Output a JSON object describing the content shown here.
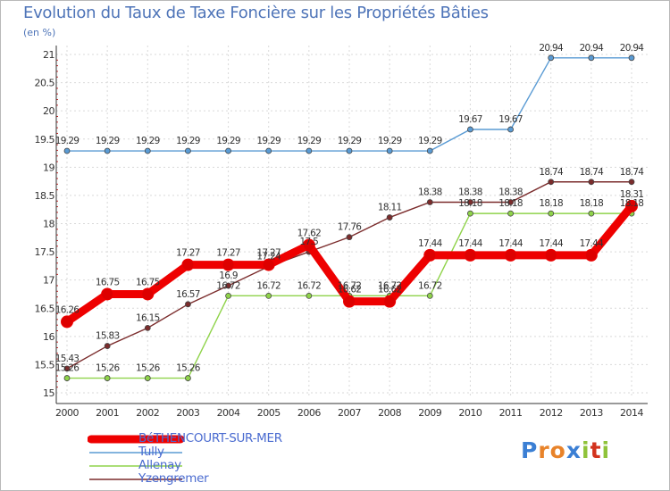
{
  "title": "Evolution du Taux de Taxe Foncière sur les Propriétés Bâties",
  "unit": "(en %)",
  "logo": {
    "text": "Proxiti"
  },
  "chart_data": {
    "type": "line",
    "title": "Evolution du Taux de Taxe Foncière sur les Propriétés Bâties",
    "ylabel": "(en %)",
    "xlabel": "",
    "ylim": [
      15,
      21
    ],
    "yticks": [
      "15",
      "15.5",
      "16",
      "16.5",
      "17",
      "17.5",
      "18",
      "18.5",
      "19",
      "19.5",
      "20",
      "20.5",
      "21"
    ],
    "x": [
      "2000",
      "2001",
      "2002",
      "2003",
      "2004",
      "2005",
      "2006",
      "2007",
      "2008",
      "2009",
      "2010",
      "2011",
      "2012",
      "2013",
      "2014"
    ],
    "series": [
      {
        "name": "Tully",
        "color": "#5a9bd4",
        "values": [
          19.29,
          19.29,
          19.29,
          19.29,
          19.29,
          19.29,
          19.29,
          19.29,
          19.29,
          19.29,
          19.67,
          19.67,
          20.94,
          20.94,
          20.94
        ],
        "labels": [
          "19.29",
          "19.29",
          "19.29",
          "19.29",
          "19.29",
          "19.29",
          "19.29",
          "19.29",
          "19.29",
          "19.29",
          "19.67",
          "19.67",
          "20.94",
          "20.94",
          "20.94"
        ]
      },
      {
        "name": "Allenay",
        "color": "#8fd34a",
        "values": [
          15.26,
          15.26,
          15.26,
          15.26,
          16.72,
          16.72,
          16.72,
          16.72,
          16.72,
          16.72,
          18.18,
          18.18,
          18.18,
          18.18,
          18.18
        ],
        "labels": [
          "15.26",
          "15.26",
          "15.26",
          "15.26",
          "16.72",
          "16.72",
          "16.72",
          "16.72",
          "16.72",
          "16.72",
          "18.18",
          "18.18",
          "18.18",
          "18.18",
          "18.18"
        ]
      },
      {
        "name": "Yzengremer",
        "color": "#7b2c2c",
        "values": [
          15.43,
          15.83,
          16.15,
          16.57,
          16.9,
          17.24,
          17.5,
          17.76,
          18.11,
          18.38,
          18.38,
          18.38,
          18.74,
          18.74,
          18.74
        ],
        "labels": [
          "15.43",
          "15.83",
          "16.15",
          "16.57",
          "16.9",
          "17.24",
          "17.5",
          "17.76",
          "18.11",
          "18.38",
          "18.38",
          "18.38",
          "18.74",
          "18.74",
          "18.74"
        ]
      },
      {
        "name": "BéTHENCOURT-SUR-MER",
        "color": "#ee0000",
        "values": [
          16.26,
          16.75,
          16.75,
          17.27,
          17.27,
          17.27,
          17.62,
          16.62,
          16.62,
          17.44,
          17.44,
          17.44,
          17.44,
          17.44,
          18.31
        ],
        "labels": [
          "16.26",
          "16.75",
          "16.75",
          "17.27",
          "17.27",
          "17.27",
          "17.62",
          "16.62",
          "16.62",
          "17.44",
          "17.44",
          "17.44",
          "17.44",
          "17.44",
          "18.31"
        ]
      }
    ],
    "legend": {
      "placement": "bottom-left",
      "order": [
        "BéTHENCOURT-SUR-MER",
        "Tully",
        "Allenay",
        "Yzengremer"
      ]
    }
  }
}
